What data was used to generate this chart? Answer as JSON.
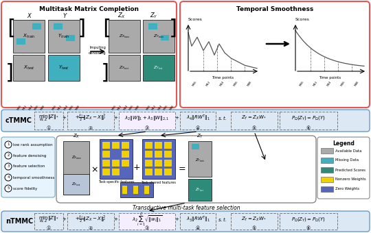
{
  "top_left_box_title": "Multitask Matrix Completion",
  "top_right_box_title": "Temporal Smoothness",
  "cTMMC_label": "cTMMC",
  "nTMMC_label": "nTMMC",
  "legend_items": [
    "Available Data",
    "Missing Data",
    "Predicted Scores",
    "Nonzero Weights",
    "Zero Weights"
  ],
  "legend_colors": [
    "#aaaaaa",
    "#40b0c0",
    "#2e8b7a",
    "#f0d000",
    "#5566bb"
  ],
  "annotations": [
    "low rank assumption",
    "feature denoising",
    "feature selection",
    "temporal smoothness",
    "score fidelity"
  ],
  "bg_color": "#ffffff",
  "top_border": "#e85555",
  "formula_box_border": "#6699cc",
  "matrix_gray": "#aaaaaa",
  "matrix_teal": "#40b0c0",
  "matrix_dark_teal": "#2e8b7a",
  "matrix_yellow": "#f0d000",
  "matrix_blue": "#5566bb",
  "time_points": [
    "M06",
    "M12",
    "M24",
    "M36",
    "M48"
  ],
  "transductive_label": "Transductive multi-task feature selection",
  "center_box_border": "#888888"
}
